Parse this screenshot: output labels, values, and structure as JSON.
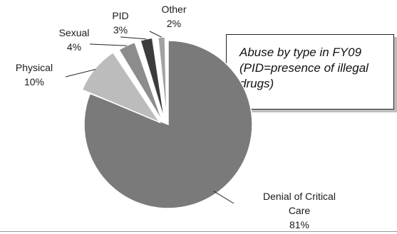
{
  "chart_data": {
    "type": "pie",
    "title": "Abuse by type in FY09 (PID=presence of illegal drugs)",
    "slices": [
      {
        "name": "Denial of Critical Care",
        "name_lines": [
          "Denial of Critical",
          "Care"
        ],
        "value_label": "81%",
        "value": 81,
        "color": "#7a7a7a"
      },
      {
        "name": "Physical",
        "name_lines": [
          "Physical"
        ],
        "value_label": "10%",
        "value": 10,
        "color": "#bcbcbc"
      },
      {
        "name": "Sexual",
        "name_lines": [
          "Sexual"
        ],
        "value_label": "4%",
        "value": 4,
        "color": "#8c8c8c"
      },
      {
        "name": "PID",
        "name_lines": [
          "PID"
        ],
        "value_label": "3%",
        "value": 3,
        "color": "#3c3c3c"
      },
      {
        "name": "Other",
        "name_lines": [
          "Other"
        ],
        "value_label": "2%",
        "value": 2,
        "color": "#a2a2a2"
      }
    ],
    "exploded": true,
    "legend": "none"
  }
}
